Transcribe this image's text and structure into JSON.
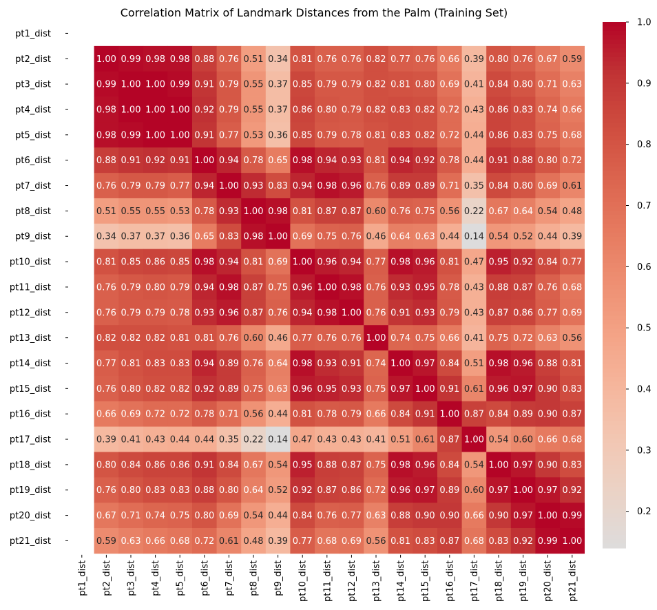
{
  "chart_data": {
    "type": "heatmap",
    "title": "Correlation Matrix of Landmark Distances from the Palm (Training Set)",
    "labels": [
      "pt1_dist",
      "pt2_dist",
      "pt3_dist",
      "pt4_dist",
      "pt5_dist",
      "pt6_dist",
      "pt7_dist",
      "pt8_dist",
      "pt9_dist",
      "pt10_dist",
      "pt11_dist",
      "pt12_dist",
      "pt13_dist",
      "pt14_dist",
      "pt15_dist",
      "pt16_dist",
      "pt17_dist",
      "pt18_dist",
      "pt19_dist",
      "pt20_dist",
      "pt21_dist"
    ],
    "matrix": [
      [
        null,
        null,
        null,
        null,
        null,
        null,
        null,
        null,
        null,
        null,
        null,
        null,
        null,
        null,
        null,
        null,
        null,
        null,
        null,
        null,
        null
      ],
      [
        null,
        1.0,
        0.99,
        0.98,
        0.98,
        0.88,
        0.76,
        0.51,
        0.34,
        0.81,
        0.76,
        0.76,
        0.82,
        0.77,
        0.76,
        0.66,
        0.39,
        0.8,
        0.76,
        0.67,
        0.59
      ],
      [
        null,
        0.99,
        1.0,
        1.0,
        0.99,
        0.91,
        0.79,
        0.55,
        0.37,
        0.85,
        0.79,
        0.79,
        0.82,
        0.81,
        0.8,
        0.69,
        0.41,
        0.84,
        0.8,
        0.71,
        0.63
      ],
      [
        null,
        0.98,
        1.0,
        1.0,
        1.0,
        0.92,
        0.79,
        0.55,
        0.37,
        0.86,
        0.8,
        0.79,
        0.82,
        0.83,
        0.82,
        0.72,
        0.43,
        0.86,
        0.83,
        0.74,
        0.66
      ],
      [
        null,
        0.98,
        0.99,
        1.0,
        1.0,
        0.91,
        0.77,
        0.53,
        0.36,
        0.85,
        0.79,
        0.78,
        0.81,
        0.83,
        0.82,
        0.72,
        0.44,
        0.86,
        0.83,
        0.75,
        0.68
      ],
      [
        null,
        0.88,
        0.91,
        0.92,
        0.91,
        1.0,
        0.94,
        0.78,
        0.65,
        0.98,
        0.94,
        0.93,
        0.81,
        0.94,
        0.92,
        0.78,
        0.44,
        0.91,
        0.88,
        0.8,
        0.72
      ],
      [
        null,
        0.76,
        0.79,
        0.79,
        0.77,
        0.94,
        1.0,
        0.93,
        0.83,
        0.94,
        0.98,
        0.96,
        0.76,
        0.89,
        0.89,
        0.71,
        0.35,
        0.84,
        0.8,
        0.69,
        0.61
      ],
      [
        null,
        0.51,
        0.55,
        0.55,
        0.53,
        0.78,
        0.93,
        1.0,
        0.98,
        0.81,
        0.87,
        0.87,
        0.6,
        0.76,
        0.75,
        0.56,
        0.22,
        0.67,
        0.64,
        0.54,
        0.48
      ],
      [
        null,
        0.34,
        0.37,
        0.37,
        0.36,
        0.65,
        0.83,
        0.98,
        1.0,
        0.69,
        0.75,
        0.76,
        0.46,
        0.64,
        0.63,
        0.44,
        0.14,
        0.54,
        0.52,
        0.44,
        0.39
      ],
      [
        null,
        0.81,
        0.85,
        0.86,
        0.85,
        0.98,
        0.94,
        0.81,
        0.69,
        1.0,
        0.96,
        0.94,
        0.77,
        0.98,
        0.96,
        0.81,
        0.47,
        0.95,
        0.92,
        0.84,
        0.77
      ],
      [
        null,
        0.76,
        0.79,
        0.8,
        0.79,
        0.94,
        0.98,
        0.87,
        0.75,
        0.96,
        1.0,
        0.98,
        0.76,
        0.93,
        0.95,
        0.78,
        0.43,
        0.88,
        0.87,
        0.76,
        0.68
      ],
      [
        null,
        0.76,
        0.79,
        0.79,
        0.78,
        0.93,
        0.96,
        0.87,
        0.76,
        0.94,
        0.98,
        1.0,
        0.76,
        0.91,
        0.93,
        0.79,
        0.43,
        0.87,
        0.86,
        0.77,
        0.69
      ],
      [
        null,
        0.82,
        0.82,
        0.82,
        0.81,
        0.81,
        0.76,
        0.6,
        0.46,
        0.77,
        0.76,
        0.76,
        1.0,
        0.74,
        0.75,
        0.66,
        0.41,
        0.75,
        0.72,
        0.63,
        0.56
      ],
      [
        null,
        0.77,
        0.81,
        0.83,
        0.83,
        0.94,
        0.89,
        0.76,
        0.64,
        0.98,
        0.93,
        0.91,
        0.74,
        1.0,
        0.97,
        0.84,
        0.51,
        0.98,
        0.96,
        0.88,
        0.81
      ],
      [
        null,
        0.76,
        0.8,
        0.82,
        0.82,
        0.92,
        0.89,
        0.75,
        0.63,
        0.96,
        0.95,
        0.93,
        0.75,
        0.97,
        1.0,
        0.91,
        0.61,
        0.96,
        0.97,
        0.9,
        0.83
      ],
      [
        null,
        0.66,
        0.69,
        0.72,
        0.72,
        0.78,
        0.71,
        0.56,
        0.44,
        0.81,
        0.78,
        0.79,
        0.66,
        0.84,
        0.91,
        1.0,
        0.87,
        0.84,
        0.89,
        0.9,
        0.87
      ],
      [
        null,
        0.39,
        0.41,
        0.43,
        0.44,
        0.44,
        0.35,
        0.22,
        0.14,
        0.47,
        0.43,
        0.43,
        0.41,
        0.51,
        0.61,
        0.87,
        1.0,
        0.54,
        0.6,
        0.66,
        0.68
      ],
      [
        null,
        0.8,
        0.84,
        0.86,
        0.86,
        0.91,
        0.84,
        0.67,
        0.54,
        0.95,
        0.88,
        0.87,
        0.75,
        0.98,
        0.96,
        0.84,
        0.54,
        1.0,
        0.97,
        0.9,
        0.83
      ],
      [
        null,
        0.76,
        0.8,
        0.83,
        0.83,
        0.88,
        0.8,
        0.64,
        0.52,
        0.92,
        0.87,
        0.86,
        0.72,
        0.96,
        0.97,
        0.89,
        0.6,
        0.97,
        1.0,
        0.97,
        0.92
      ],
      [
        null,
        0.67,
        0.71,
        0.74,
        0.75,
        0.8,
        0.69,
        0.54,
        0.44,
        0.84,
        0.76,
        0.77,
        0.63,
        0.88,
        0.9,
        0.9,
        0.66,
        0.9,
        0.97,
        1.0,
        0.99
      ],
      [
        null,
        0.59,
        0.63,
        0.66,
        0.68,
        0.72,
        0.61,
        0.48,
        0.39,
        0.77,
        0.68,
        0.69,
        0.56,
        0.81,
        0.83,
        0.87,
        0.68,
        0.83,
        0.92,
        0.99,
        1.0
      ]
    ],
    "colorbar": {
      "min": 0.14,
      "max": 1.0,
      "ticks": [
        0.2,
        0.3,
        0.4,
        0.5,
        0.6,
        0.7,
        0.8,
        0.9,
        1.0
      ],
      "tick_labels": [
        "0.2",
        "0.3",
        "0.4",
        "0.5",
        "0.6",
        "0.7",
        "0.8",
        "0.9",
        "1.0"
      ]
    },
    "colormap": {
      "name": "coolwarm (centered at 0)",
      "low": "#dddcdc",
      "high": "#b40426"
    },
    "annotations": true,
    "legend": "colorbar-right"
  }
}
